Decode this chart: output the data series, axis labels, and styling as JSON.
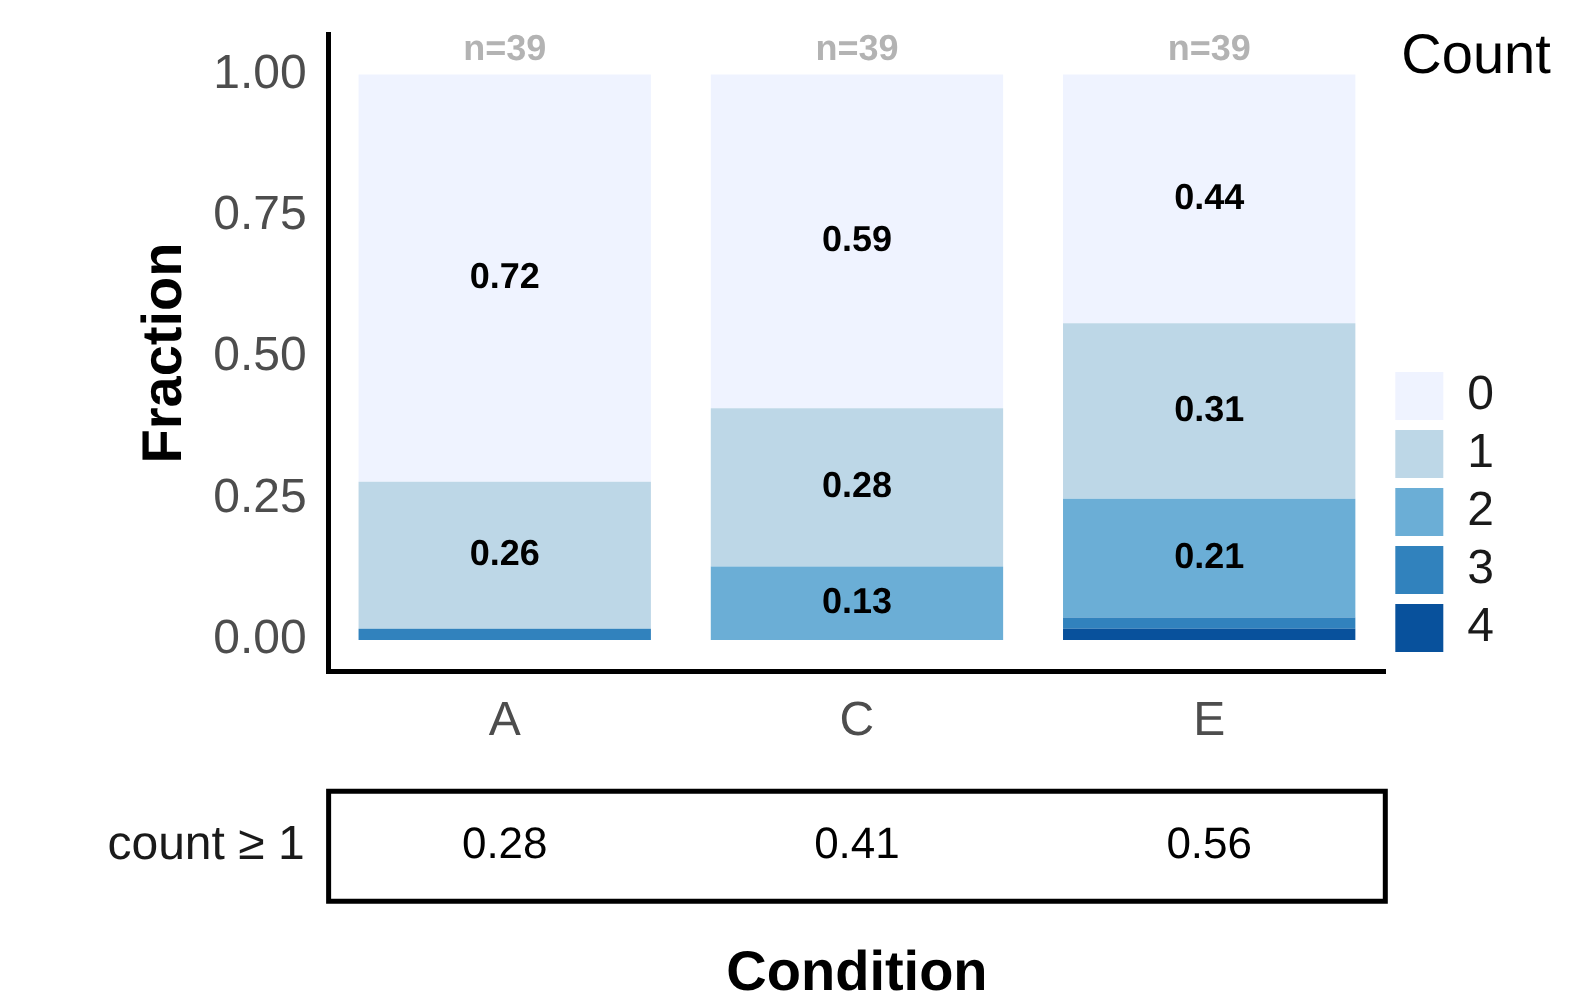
{
  "chart_data": {
    "type": "bar",
    "stacked": true,
    "xlabel": "Condition",
    "ylabel": "Fraction",
    "legend_title": "Count",
    "legend": "right",
    "grid": false,
    "categories": [
      "A",
      "C",
      "E"
    ],
    "ylim": [
      -0.055,
      1.07
    ],
    "yticks": [
      {
        "value": 0,
        "label": "0.00"
      },
      0.25,
      {
        "value": 0.5,
        "label": "0.50"
      },
      0.75,
      {
        "value": 1,
        "label": "1.00"
      }
    ],
    "series": [
      {
        "name": "4",
        "color": "#08519c",
        "values": [
          0,
          0,
          0.02
        ],
        "value_labels": [
          null,
          null,
          null
        ]
      },
      {
        "name": "3",
        "color": "#3182bd",
        "values": [
          0.02,
          0,
          0.02
        ],
        "value_labels": [
          null,
          null,
          null
        ]
      },
      {
        "name": "2",
        "color": "#6baed6",
        "values": [
          0,
          0.13,
          0.21
        ],
        "value_labels": [
          null,
          "0.13",
          "0.21"
        ]
      },
      {
        "name": "1",
        "color": "#bdd7e7",
        "values": [
          0.26,
          0.28,
          0.31
        ],
        "value_labels": [
          "0.26",
          "0.28",
          "0.31"
        ]
      },
      {
        "name": "0",
        "color": "#eff3ff",
        "values": [
          0.72,
          0.59,
          0.44
        ],
        "value_labels": [
          "0.72",
          "0.59",
          "0.44"
        ]
      }
    ],
    "annotations": [
      {
        "text": "n=39",
        "x": "A",
        "y": 1
      },
      {
        "text": "n=39",
        "x": "C",
        "y": 1
      },
      {
        "text": "n=39",
        "x": "E",
        "y": 1
      },
      "count ≥ 1",
      "0.28",
      "0.41",
      "0.56"
    ]
  }
}
